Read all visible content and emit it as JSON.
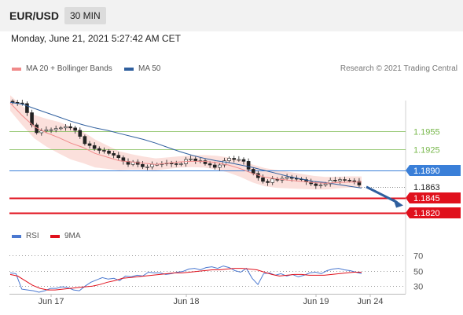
{
  "header": {
    "pair": "EUR/USD",
    "timeframe": "30 MIN",
    "datetime": "Monday, June 21, 2021 5:27:42 AM CET"
  },
  "legend": {
    "ma20": "MA 20 + Bollinger Bands",
    "ma50": "MA 50",
    "credit": "Research © 2021 Trading Central",
    "rsi": "RSI",
    "ma9": "9MA"
  },
  "colors": {
    "ma20": "#f08a8a",
    "ma50": "#2f5f9e",
    "band_fill": "#fbe0dc",
    "green_level": "#79b84d",
    "blue_level": "#3a7fd8",
    "red_level": "#e0101c",
    "rsi": "#4a78d0",
    "ma9": "#e0101c"
  },
  "chart_data": {
    "type": "candlestick",
    "x_ticks": [
      "Jun 17",
      "Jun 18",
      "Jun 19",
      "Jun 24"
    ],
    "price_ylim": [
      1.1815,
      1.2005
    ],
    "levels": [
      {
        "value": "1.1955",
        "style": "green"
      },
      {
        "value": "1.1925",
        "style": "green"
      },
      {
        "value": "1.1890",
        "style": "blue-box"
      },
      {
        "value": "1.1863",
        "style": "current-partial"
      },
      {
        "value": "1.1845",
        "style": "red-box"
      },
      {
        "value": "1.1820",
        "style": "red-box"
      }
    ],
    "close": [
      1.2002,
      1.2001,
      1.2,
      1.1985,
      1.1965,
      1.1952,
      1.1955,
      1.1957,
      1.1957,
      1.1959,
      1.196,
      1.1962,
      1.196,
      1.1956,
      1.1946,
      1.1934,
      1.1931,
      1.1926,
      1.1923,
      1.1922,
      1.1918,
      1.1915,
      1.1911,
      1.1905,
      1.19,
      1.1904,
      1.19,
      1.1896,
      1.1896,
      1.19,
      1.19,
      1.1901,
      1.1902,
      1.1901,
      1.19,
      1.1901,
      1.1908,
      1.1909,
      1.1906,
      1.1906,
      1.1901,
      1.1899,
      1.1895,
      1.1899,
      1.1906,
      1.191,
      1.1908,
      1.1908,
      1.1905,
      1.1892,
      1.1885,
      1.1878,
      1.1872,
      1.187,
      1.1876,
      1.1874,
      1.1877,
      1.1879,
      1.1877,
      1.1876,
      1.1875,
      1.1871,
      1.1868,
      1.1865,
      1.1866,
      1.1868,
      1.1874,
      1.1873,
      1.1875,
      1.1874,
      1.1873,
      1.1872,
      1.1866
    ],
    "ma50": [
      1.2002,
      1.1999,
      1.1992,
      1.1985,
      1.1978,
      1.1971,
      1.1965,
      1.196,
      1.1956,
      1.1951,
      1.1946,
      1.1941,
      1.1935,
      1.1928,
      1.1921,
      1.1915,
      1.191,
      1.1906,
      1.1903,
      1.1899,
      1.1895,
      1.189,
      1.1885,
      1.188,
      1.1876,
      1.1872,
      1.187,
      1.1867,
      1.1864,
      1.1861
    ],
    "ma20": [
      1.2001,
      1.198,
      1.1962,
      1.1952,
      1.1944,
      1.1935,
      1.1928,
      1.1918,
      1.1912,
      1.1906,
      1.1904,
      1.1902,
      1.19,
      1.1902,
      1.1904,
      1.1905,
      1.1905,
      1.1903,
      1.1899,
      1.1893,
      1.1885,
      1.1879,
      1.1876,
      1.1874,
      1.1872,
      1.187,
      1.1869,
      1.187,
      1.1871,
      1.1871
    ],
    "rsi_ylim": [
      20,
      80
    ],
    "rsi_levels": [
      "70",
      "50",
      "30"
    ],
    "rsi": [
      47,
      46,
      26,
      25,
      24,
      22,
      24,
      27,
      27,
      29,
      28,
      25,
      24,
      30,
      35,
      38,
      41,
      39,
      40,
      37,
      43,
      42,
      44,
      43,
      48,
      47,
      47,
      45,
      46,
      48,
      49,
      52,
      53,
      51,
      54,
      55,
      53,
      56,
      54,
      50,
      48,
      53,
      40,
      32,
      46,
      47,
      44,
      46,
      43,
      45,
      42,
      44,
      47,
      48,
      46,
      50,
      52,
      53,
      51,
      50,
      48,
      46
    ],
    "ma9": [
      45,
      43,
      37,
      31,
      27,
      25,
      25,
      26,
      27,
      28,
      29,
      30,
      32,
      35,
      37,
      40,
      41,
      42,
      43,
      44,
      45,
      46,
      47,
      47,
      48,
      49,
      50,
      51,
      51,
      52,
      53,
      53,
      52,
      51,
      48,
      45,
      43,
      44,
      45,
      45,
      44,
      44,
      44,
      45,
      46,
      47,
      48,
      48
    ]
  }
}
